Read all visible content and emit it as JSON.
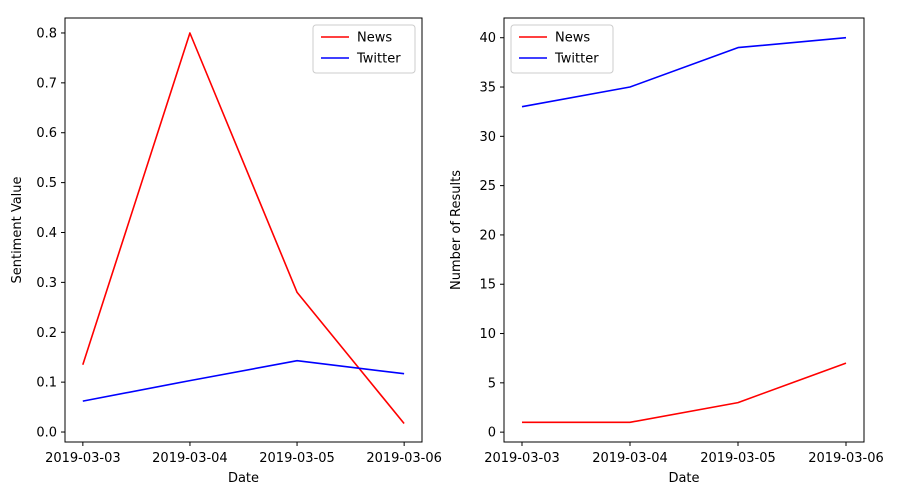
{
  "chart_data": [
    {
      "type": "line",
      "x": [
        "2019-03-03",
        "2019-03-04",
        "2019-03-05",
        "2019-03-06"
      ],
      "xlabel": "Date",
      "ylabel": "Sentiment Value",
      "ylim": [
        -0.02,
        0.83
      ],
      "yticks": [
        "0.0",
        "0.1",
        "0.2",
        "0.3",
        "0.4",
        "0.5",
        "0.6",
        "0.7",
        "0.8"
      ],
      "legend_position": "upper right",
      "grid": false,
      "series": [
        {
          "name": "News",
          "color": "#ff0000",
          "values": [
            0.135,
            0.8,
            0.28,
            0.017
          ]
        },
        {
          "name": "Twitter",
          "color": "#0000ff",
          "values": [
            0.062,
            0.103,
            0.143,
            0.117
          ]
        }
      ]
    },
    {
      "type": "line",
      "x": [
        "2019-03-03",
        "2019-03-04",
        "2019-03-05",
        "2019-03-06"
      ],
      "xlabel": "Date",
      "ylabel": "Number of Results",
      "ylim": [
        -1.0,
        42.0
      ],
      "yticks": [
        "0",
        "5",
        "10",
        "15",
        "20",
        "25",
        "30",
        "35",
        "40"
      ],
      "legend_position": "upper left",
      "grid": false,
      "series": [
        {
          "name": "News",
          "color": "#ff0000",
          "values": [
            1,
            1,
            3,
            7
          ]
        },
        {
          "name": "Twitter",
          "color": "#0000ff",
          "values": [
            33,
            35,
            39,
            40
          ]
        }
      ]
    }
  ]
}
